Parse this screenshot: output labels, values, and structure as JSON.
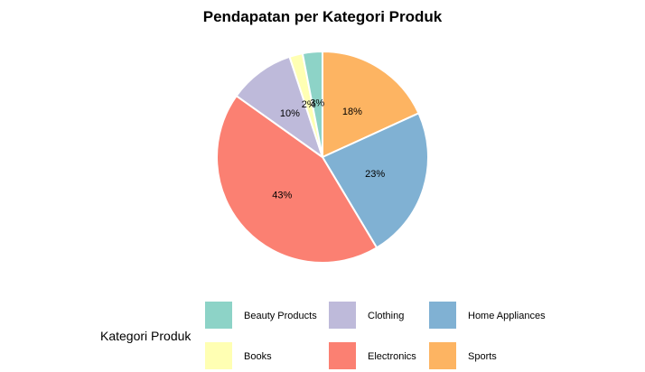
{
  "chart_data": {
    "type": "pie",
    "title": "Pendapatan per Kategori Produk",
    "legend_title": "Kategori Produk",
    "legend_placement": "bottom",
    "slices": [
      {
        "category": "Sports",
        "value": 18,
        "label": "18%",
        "color": "#FDB462"
      },
      {
        "category": "Home Appliances",
        "value": 23,
        "label": "23%",
        "color": "#80B1D3"
      },
      {
        "category": "Electronics",
        "value": 43,
        "label": "43%",
        "color": "#FB8072"
      },
      {
        "category": "Clothing",
        "value": 10,
        "label": "10%",
        "color": "#BEBADA"
      },
      {
        "category": "Books",
        "value": 2,
        "label": "2%",
        "color": "#FFFFB3"
      },
      {
        "category": "Beauty Products",
        "value": 3,
        "label": "3%",
        "color": "#8DD3C7"
      }
    ],
    "legend_items": [
      {
        "label": "Beauty Products",
        "color": "#8DD3C7"
      },
      {
        "label": "Books",
        "color": "#FFFFB3"
      },
      {
        "label": "Clothing",
        "color": "#BEBADA"
      },
      {
        "label": "Electronics",
        "color": "#FB8072"
      },
      {
        "label": "Home Appliances",
        "color": "#80B1D3"
      },
      {
        "label": "Sports",
        "color": "#FDB462"
      }
    ]
  }
}
